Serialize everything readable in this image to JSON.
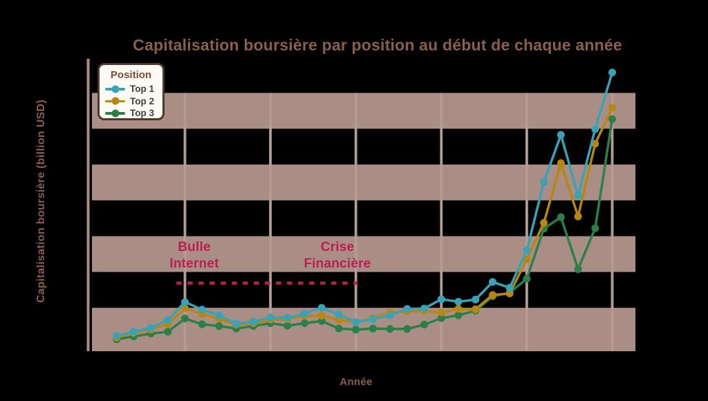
{
  "title": "Capitalisation boursière par position au début de chaque année",
  "x_axis_label": "Année",
  "y_axis_label": "Capitalisation boursière (billion USD)",
  "colors": {
    "background": "#000000",
    "stripe_band": "#aa8d85",
    "gridline": "#b59c93",
    "axis_spine": "#aa8d85",
    "title_text": "#8a5f4c",
    "annotation_text": "#bb1e53",
    "legend_border": "#4e372c",
    "legend_background": "#fdfaf3",
    "legend_title_text": "#7c4a38",
    "legend_label_text": "#3e3e3e",
    "top1": "#38a3b6",
    "top2": "#b8870f",
    "top3": "#2c7f47"
  },
  "legend": {
    "title": "Position",
    "entries": [
      {
        "label": "Top 1",
        "color": "#38a3b6"
      },
      {
        "label": "Top 2",
        "color": "#b8870f"
      },
      {
        "label": "Top 3",
        "color": "#2c7f47"
      }
    ]
  },
  "annotations": {
    "bulle": {
      "line1": "Bulle",
      "line2": "Internet"
    },
    "crise": {
      "line1": "Crise",
      "line2": "Financière"
    }
  },
  "chart_data": {
    "type": "line",
    "title": "Capitalisation boursière par position au début de chaque année",
    "xlabel": "Année",
    "ylabel": "Capitalisation boursière (billion USD)",
    "x": [
      1996,
      1997,
      1998,
      1999,
      2000,
      2001,
      2002,
      2003,
      2004,
      2005,
      2006,
      2007,
      2008,
      2009,
      2010,
      2011,
      2012,
      2013,
      2014,
      2015,
      2016,
      2017,
      2018,
      2019,
      2020,
      2021,
      2022,
      2023,
      2024,
      2025
    ],
    "series": [
      {
        "name": "Top 1",
        "color": "#38a3b6",
        "values": [
          110,
          165,
          220,
          330,
          580,
          475,
          395,
          280,
          305,
          365,
          360,
          420,
          500,
          405,
          300,
          340,
          395,
          485,
          490,
          620,
          585,
          615,
          860,
          780,
          1300,
          2255,
          2915,
          2065,
          2995,
          3785
        ]
      },
      {
        "name": "Top 2",
        "color": "#b8870f",
        "values": [
          85,
          150,
          195,
          275,
          495,
          410,
          350,
          265,
          285,
          335,
          340,
          390,
          390,
          330,
          300,
          355,
          435,
          445,
          455,
          435,
          485,
          480,
          680,
          700,
          1180,
          1685,
          2520,
          1775,
          2790,
          3295
        ]
      },
      {
        "name": "Top 3",
        "color": "#2c7f47",
        "values": [
          60,
          100,
          140,
          165,
          350,
          270,
          245,
          210,
          245,
          285,
          250,
          285,
          315,
          210,
          195,
          210,
          205,
          205,
          265,
          355,
          395,
          460,
          660,
          710,
          905,
          1605,
          1765,
          1040,
          1610,
          3135
        ]
      }
    ],
    "ylim": [
      -105,
      3975
    ],
    "y_gridline_interval": 500,
    "stripe_bands": [
      [
        0,
        500
      ],
      [
        1000,
        1500
      ],
      [
        2000,
        2500
      ],
      [
        3000,
        3500
      ]
    ],
    "x_gridline_years": [
      2000,
      2005,
      2010,
      2015,
      2020,
      2025
    ],
    "grid": "striped-horizontal-bands with vertical year gridlines, no visible tick labels",
    "legend_position": "upper-left",
    "dashed_line": {
      "from_year": 1999.5,
      "to_year": 2010.1,
      "value": 845,
      "color": "#bb1e53"
    }
  }
}
